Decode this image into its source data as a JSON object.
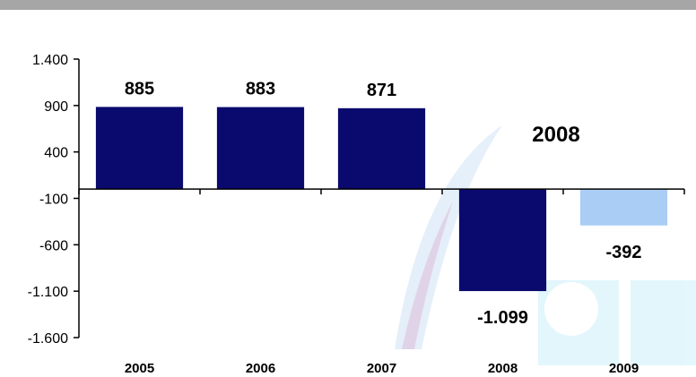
{
  "chart_data": {
    "type": "bar",
    "title": "",
    "xlabel": "",
    "ylabel": "",
    "categories": [
      "2005",
      "2006",
      "2007",
      "2008",
      "2009"
    ],
    "values": [
      885,
      883,
      871,
      -1099,
      -392
    ],
    "data_labels": [
      "885",
      "883",
      "871",
      "-1.099",
      "-392"
    ],
    "yticks": [
      1400,
      900,
      400,
      -100,
      -600,
      -1100,
      -1600
    ],
    "ytick_labels": [
      "1.400",
      "900",
      "400",
      "-100",
      "-600",
      "-1.100",
      "-1.600"
    ],
    "ylim": [
      -1600,
      1400
    ],
    "grid": false,
    "annotation": "2008",
    "colors": [
      "#0a0a6e",
      "#0a0a6e",
      "#0a0a6e",
      "#0a0a6e",
      "#a9cdf5"
    ]
  }
}
